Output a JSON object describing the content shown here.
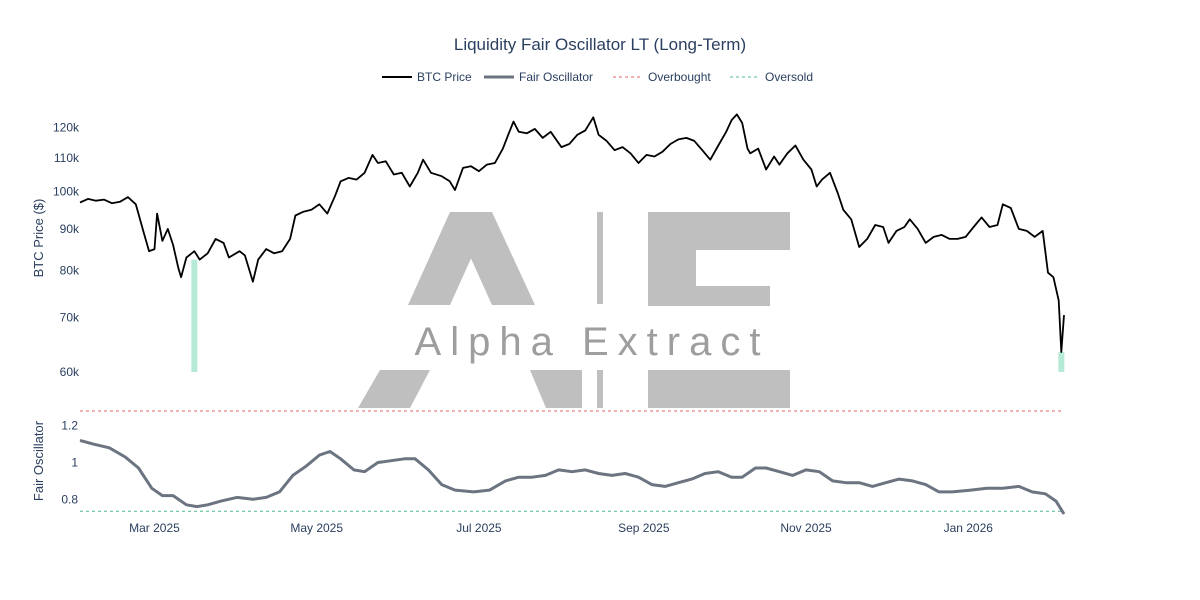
{
  "chart_data": {
    "type": "line",
    "title": "Liquidity Fair Oscillator LT (Long-Term)",
    "legend": {
      "placement": "top-center",
      "entries": [
        "BTC Price",
        "Fair Oscillator",
        "Overbought",
        "Oversold"
      ]
    },
    "x_range": [
      "2025-02-01",
      "2026-02-06"
    ],
    "x_ticks": [
      "Mar 2025",
      "May 2025",
      "Jul 2025",
      "Sep 2025",
      "Nov 2025",
      "Jan 2026"
    ],
    "x_tick_dates": [
      "2025-03-01",
      "2025-05-01",
      "2025-07-01",
      "2025-09-01",
      "2025-11-01",
      "2026-01-01"
    ],
    "price_panel": {
      "ylabel": "BTC Price ($)",
      "scale": "log",
      "ylim": [
        60000,
        125000
      ],
      "y_ticks": [
        "60k",
        "70k",
        "80k",
        "90k",
        "100k",
        "110k",
        "120k"
      ],
      "y_tick_values": [
        60000,
        70000,
        80000,
        90000,
        100000,
        110000,
        120000
      ],
      "series": [
        {
          "name": "BTC Price",
          "color": "#000000",
          "points": [
            [
              "2025-02-01",
              97000
            ],
            [
              "2025-02-04",
              98000
            ],
            [
              "2025-02-07",
              97500
            ],
            [
              "2025-02-10",
              97800
            ],
            [
              "2025-02-13",
              96800
            ],
            [
              "2025-02-16",
              97200
            ],
            [
              "2025-02-19",
              98500
            ],
            [
              "2025-02-22",
              96500
            ],
            [
              "2025-02-25",
              89000
            ],
            [
              "2025-02-27",
              84500
            ],
            [
              "2025-03-01",
              85000
            ],
            [
              "2025-03-02",
              94000
            ],
            [
              "2025-03-04",
              87000
            ],
            [
              "2025-03-06",
              90000
            ],
            [
              "2025-03-08",
              86000
            ],
            [
              "2025-03-10",
              80500
            ],
            [
              "2025-03-11",
              78500
            ],
            [
              "2025-03-13",
              83000
            ],
            [
              "2025-03-16",
              84500
            ],
            [
              "2025-03-18",
              82500
            ],
            [
              "2025-03-21",
              84000
            ],
            [
              "2025-03-24",
              87500
            ],
            [
              "2025-03-27",
              86500
            ],
            [
              "2025-03-29",
              83000
            ],
            [
              "2025-04-02",
              84500
            ],
            [
              "2025-04-04",
              83500
            ],
            [
              "2025-04-07",
              77500
            ],
            [
              "2025-04-09",
              82500
            ],
            [
              "2025-04-12",
              85000
            ],
            [
              "2025-04-15",
              84000
            ],
            [
              "2025-04-18",
              84500
            ],
            [
              "2025-04-21",
              87500
            ],
            [
              "2025-04-23",
              93500
            ],
            [
              "2025-04-26",
              94500
            ],
            [
              "2025-04-29",
              95000
            ],
            [
              "2025-05-02",
              96500
            ],
            [
              "2025-05-05",
              94000
            ],
            [
              "2025-05-08",
              99000
            ],
            [
              "2025-05-10",
              103000
            ],
            [
              "2025-05-13",
              104000
            ],
            [
              "2025-05-16",
              103500
            ],
            [
              "2025-05-19",
              105500
            ],
            [
              "2025-05-22",
              111000
            ],
            [
              "2025-05-24",
              108500
            ],
            [
              "2025-05-27",
              109000
            ],
            [
              "2025-05-30",
              105000
            ],
            [
              "2025-06-02",
              105500
            ],
            [
              "2025-06-05",
              101500
            ],
            [
              "2025-06-08",
              105500
            ],
            [
              "2025-06-10",
              109500
            ],
            [
              "2025-06-13",
              105500
            ],
            [
              "2025-06-17",
              104500
            ],
            [
              "2025-06-20",
              103000
            ],
            [
              "2025-06-22",
              100500
            ],
            [
              "2025-06-25",
              107000
            ],
            [
              "2025-06-28",
              107500
            ],
            [
              "2025-07-01",
              106000
            ],
            [
              "2025-07-04",
              108000
            ],
            [
              "2025-07-07",
              108500
            ],
            [
              "2025-07-10",
              113000
            ],
            [
              "2025-07-12",
              117500
            ],
            [
              "2025-07-14",
              122000
            ],
            [
              "2025-07-16",
              118500
            ],
            [
              "2025-07-19",
              118000
            ],
            [
              "2025-07-22",
              119500
            ],
            [
              "2025-07-25",
              116500
            ],
            [
              "2025-07-28",
              118500
            ],
            [
              "2025-08-01",
              113500
            ],
            [
              "2025-08-04",
              114500
            ],
            [
              "2025-08-07",
              117500
            ],
            [
              "2025-08-10",
              119000
            ],
            [
              "2025-08-13",
              123500
            ],
            [
              "2025-08-15",
              117500
            ],
            [
              "2025-08-18",
              115500
            ],
            [
              "2025-08-21",
              112500
            ],
            [
              "2025-08-24",
              113500
            ],
            [
              "2025-08-27",
              111500
            ],
            [
              "2025-08-30",
              108500
            ],
            [
              "2025-09-02",
              111000
            ],
            [
              "2025-09-05",
              110500
            ],
            [
              "2025-09-08",
              112000
            ],
            [
              "2025-09-11",
              114500
            ],
            [
              "2025-09-14",
              116000
            ],
            [
              "2025-09-17",
              116500
            ],
            [
              "2025-09-20",
              115500
            ],
            [
              "2025-09-23",
              112500
            ],
            [
              "2025-09-26",
              109500
            ],
            [
              "2025-09-29",
              114000
            ],
            [
              "2025-10-02",
              118500
            ],
            [
              "2025-10-04",
              122500
            ],
            [
              "2025-10-06",
              124500
            ],
            [
              "2025-10-08",
              121500
            ],
            [
              "2025-10-10",
              113000
            ],
            [
              "2025-10-11",
              111500
            ],
            [
              "2025-10-14",
              113000
            ],
            [
              "2025-10-17",
              106500
            ],
            [
              "2025-10-20",
              110500
            ],
            [
              "2025-10-22",
              108000
            ],
            [
              "2025-10-25",
              111500
            ],
            [
              "2025-10-28",
              114000
            ],
            [
              "2025-10-31",
              109500
            ],
            [
              "2025-11-03",
              106500
            ],
            [
              "2025-11-05",
              101500
            ],
            [
              "2025-11-07",
              103500
            ],
            [
              "2025-11-10",
              105500
            ],
            [
              "2025-11-13",
              99500
            ],
            [
              "2025-11-15",
              95000
            ],
            [
              "2025-11-18",
              92500
            ],
            [
              "2025-11-21",
              85500
            ],
            [
              "2025-11-24",
              87500
            ],
            [
              "2025-11-27",
              91000
            ],
            [
              "2025-11-30",
              90500
            ],
            [
              "2025-12-02",
              86500
            ],
            [
              "2025-12-05",
              89500
            ],
            [
              "2025-12-08",
              90500
            ],
            [
              "2025-12-10",
              92500
            ],
            [
              "2025-12-13",
              90000
            ],
            [
              "2025-12-16",
              86500
            ],
            [
              "2025-12-19",
              88000
            ],
            [
              "2025-12-22",
              88500
            ],
            [
              "2025-12-25",
              87500
            ],
            [
              "2025-12-28",
              87500
            ],
            [
              "2025-12-31",
              88000
            ],
            [
              "2026-01-03",
              90500
            ],
            [
              "2026-01-06",
              93000
            ],
            [
              "2026-01-09",
              90500
            ],
            [
              "2026-01-12",
              91000
            ],
            [
              "2026-01-14",
              96500
            ],
            [
              "2026-01-17",
              95500
            ],
            [
              "2026-01-20",
              90000
            ],
            [
              "2026-01-23",
              89500
            ],
            [
              "2026-01-26",
              88000
            ],
            [
              "2026-01-29",
              89500
            ],
            [
              "2026-01-31",
              79500
            ],
            [
              "2026-02-02",
              78500
            ],
            [
              "2026-02-04",
              73500
            ],
            [
              "2026-02-05",
              63500
            ],
            [
              "2026-02-06",
              70500
            ]
          ]
        }
      ],
      "oversold_markers": [
        {
          "x": "2025-03-16",
          "low": 60000,
          "high": 82500,
          "color": "#b7ead6"
        },
        {
          "x": "2026-02-05",
          "low": 60000,
          "high": 63500,
          "color": "#b7ead6"
        }
      ]
    },
    "oscillator_panel": {
      "ylabel": "Fair Oscillator",
      "ylim": [
        0.72,
        1.28
      ],
      "y_ticks": [
        "0.8",
        "1",
        "1.2"
      ],
      "y_tick_values": [
        0.8,
        1.0,
        1.2
      ],
      "overbought_level": 1.28,
      "oversold_level": 0.735,
      "series": [
        {
          "name": "Fair Oscillator",
          "color": "#6b7480",
          "points": [
            [
              "2025-02-01",
              1.12
            ],
            [
              "2025-02-06",
              1.1
            ],
            [
              "2025-02-12",
              1.08
            ],
            [
              "2025-02-18",
              1.03
            ],
            [
              "2025-02-23",
              0.97
            ],
            [
              "2025-02-28",
              0.86
            ],
            [
              "2025-03-04",
              0.82
            ],
            [
              "2025-03-08",
              0.82
            ],
            [
              "2025-03-13",
              0.77
            ],
            [
              "2025-03-17",
              0.76
            ],
            [
              "2025-03-21",
              0.77
            ],
            [
              "2025-03-26",
              0.79
            ],
            [
              "2025-04-01",
              0.81
            ],
            [
              "2025-04-07",
              0.8
            ],
            [
              "2025-04-12",
              0.81
            ],
            [
              "2025-04-17",
              0.84
            ],
            [
              "2025-04-22",
              0.93
            ],
            [
              "2025-04-27",
              0.98
            ],
            [
              "2025-05-02",
              1.04
            ],
            [
              "2025-05-06",
              1.06
            ],
            [
              "2025-05-10",
              1.02
            ],
            [
              "2025-05-15",
              0.96
            ],
            [
              "2025-05-19",
              0.95
            ],
            [
              "2025-05-24",
              1.0
            ],
            [
              "2025-05-29",
              1.01
            ],
            [
              "2025-06-03",
              1.02
            ],
            [
              "2025-06-07",
              1.02
            ],
            [
              "2025-06-12",
              0.96
            ],
            [
              "2025-06-17",
              0.88
            ],
            [
              "2025-06-22",
              0.85
            ],
            [
              "2025-06-29",
              0.84
            ],
            [
              "2025-07-05",
              0.85
            ],
            [
              "2025-07-11",
              0.9
            ],
            [
              "2025-07-16",
              0.92
            ],
            [
              "2025-07-21",
              0.92
            ],
            [
              "2025-07-26",
              0.93
            ],
            [
              "2025-07-31",
              0.96
            ],
            [
              "2025-08-05",
              0.95
            ],
            [
              "2025-08-10",
              0.96
            ],
            [
              "2025-08-15",
              0.94
            ],
            [
              "2025-08-20",
              0.93
            ],
            [
              "2025-08-25",
              0.94
            ],
            [
              "2025-08-30",
              0.92
            ],
            [
              "2025-09-04",
              0.88
            ],
            [
              "2025-09-09",
              0.87
            ],
            [
              "2025-09-14",
              0.89
            ],
            [
              "2025-09-19",
              0.91
            ],
            [
              "2025-09-24",
              0.94
            ],
            [
              "2025-09-29",
              0.95
            ],
            [
              "2025-10-04",
              0.92
            ],
            [
              "2025-10-08",
              0.92
            ],
            [
              "2025-10-13",
              0.97
            ],
            [
              "2025-10-17",
              0.97
            ],
            [
              "2025-10-22",
              0.95
            ],
            [
              "2025-10-27",
              0.93
            ],
            [
              "2025-11-01",
              0.96
            ],
            [
              "2025-11-06",
              0.95
            ],
            [
              "2025-11-11",
              0.9
            ],
            [
              "2025-11-16",
              0.89
            ],
            [
              "2025-11-21",
              0.89
            ],
            [
              "2025-11-26",
              0.87
            ],
            [
              "2025-12-01",
              0.89
            ],
            [
              "2025-12-06",
              0.91
            ],
            [
              "2025-12-11",
              0.9
            ],
            [
              "2025-12-16",
              0.88
            ],
            [
              "2025-12-21",
              0.84
            ],
            [
              "2025-12-26",
              0.84
            ],
            [
              "2026-01-02",
              0.85
            ],
            [
              "2026-01-08",
              0.86
            ],
            [
              "2026-01-14",
              0.86
            ],
            [
              "2026-01-20",
              0.87
            ],
            [
              "2026-01-25",
              0.84
            ],
            [
              "2026-01-30",
              0.83
            ],
            [
              "2026-02-03",
              0.79
            ],
            [
              "2026-02-06",
              0.72
            ]
          ]
        }
      ]
    }
  },
  "watermark": {
    "text": "Alpha Extract",
    "color": "#bfbfbf"
  }
}
